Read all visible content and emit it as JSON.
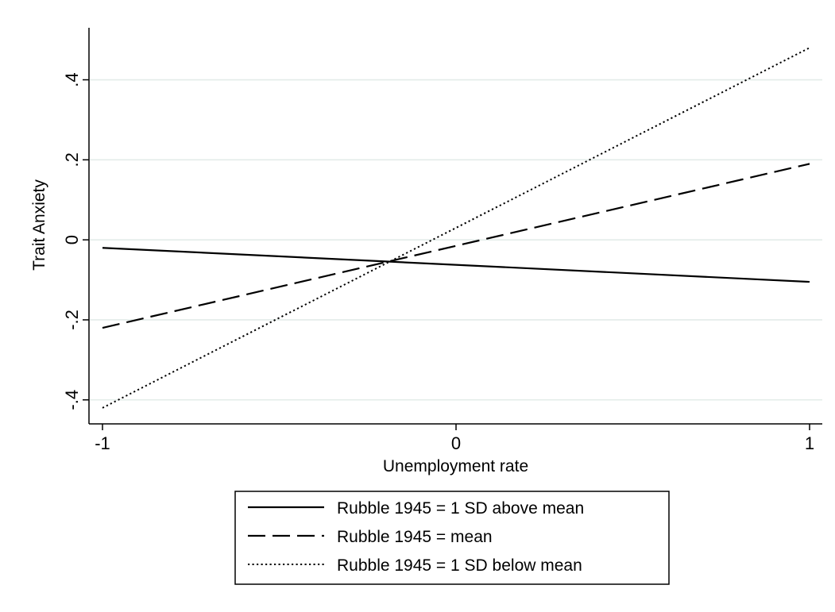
{
  "chart_data": {
    "type": "line",
    "xlabel": "Unemployment rate",
    "ylabel": "Trait Anxiety",
    "xlim": [
      -1,
      1
    ],
    "ylim": [
      -0.46,
      0.53
    ],
    "x_ticks": [
      -1,
      0,
      1
    ],
    "x_tick_labels": [
      "-1",
      "0",
      "1"
    ],
    "y_ticks": [
      -0.4,
      -0.2,
      0,
      0.2,
      0.4
    ],
    "y_tick_labels": [
      "-.4",
      "-.2",
      "0",
      ".2",
      ".4"
    ],
    "grid": "horizontal",
    "legend_position": "bottom",
    "series": [
      {
        "name": "Rubble 1945 = 1 SD above mean",
        "style": "solid",
        "x": [
          -1,
          1
        ],
        "y": [
          -0.02,
          -0.105
        ]
      },
      {
        "name": "Rubble 1945 = mean",
        "style": "dashed",
        "x": [
          -1,
          1
        ],
        "y": [
          -0.22,
          0.19
        ]
      },
      {
        "name": "Rubble 1945 = 1 SD below mean",
        "style": "dotted",
        "x": [
          -1,
          1
        ],
        "y": [
          -0.42,
          0.48
        ]
      }
    ],
    "colors": {
      "line": "#000000",
      "grid": "#e3ece9"
    }
  }
}
